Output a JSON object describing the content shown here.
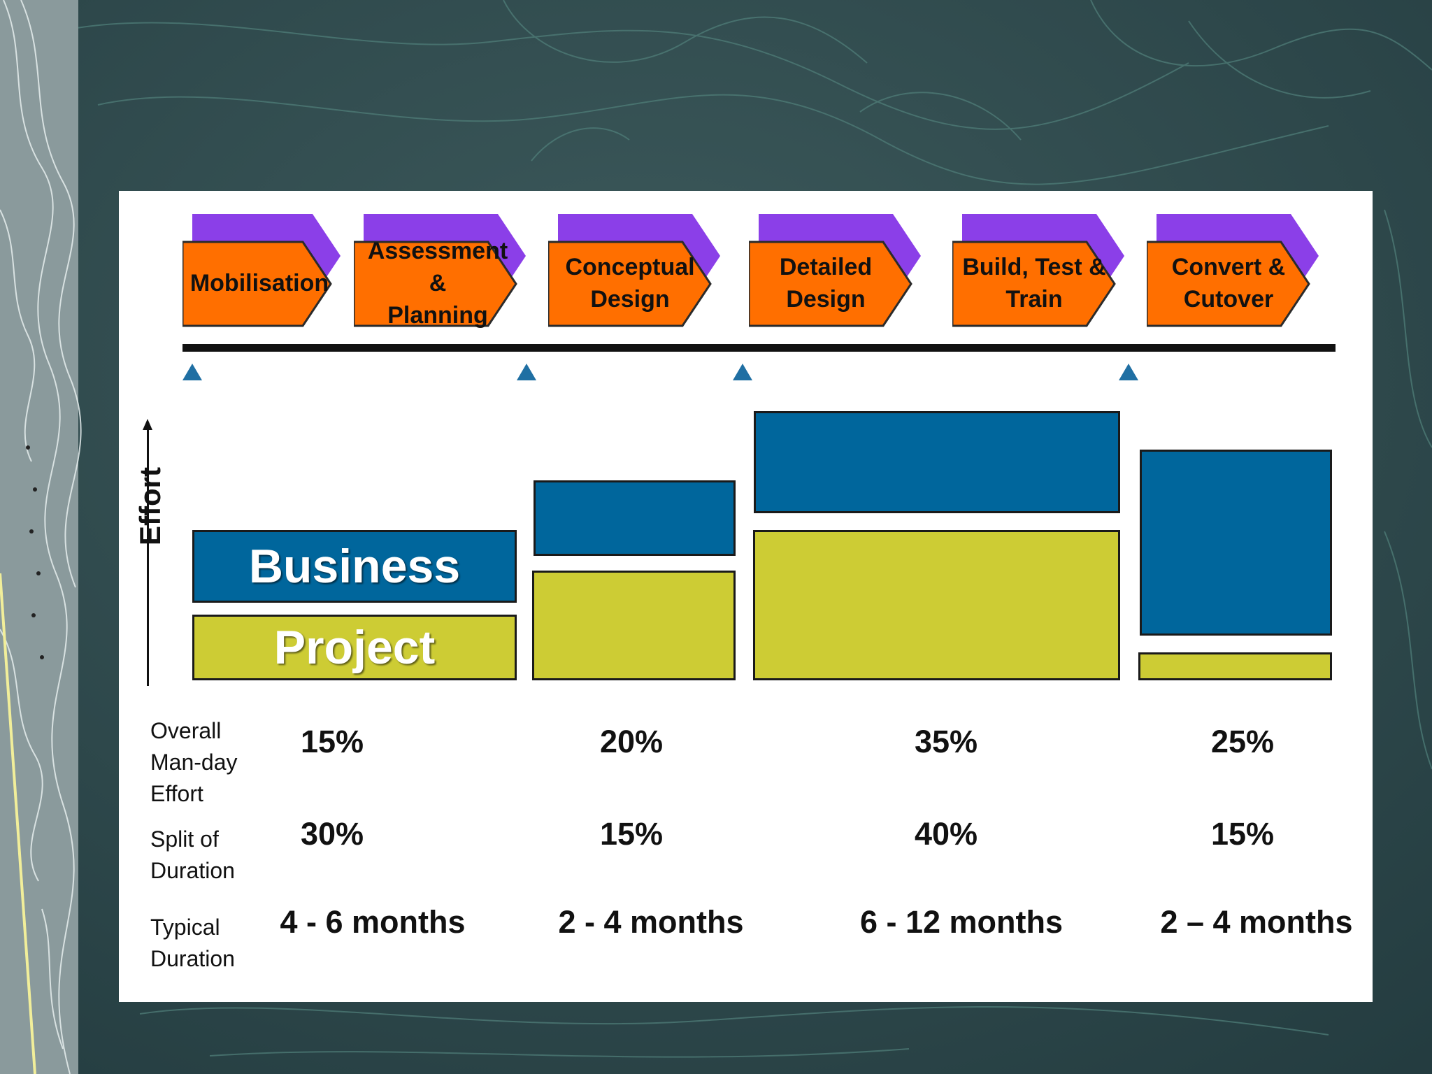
{
  "phases": [
    {
      "label": "Mobilisation"
    },
    {
      "label": "Assessment &\nPlanning"
    },
    {
      "label": "Conceptual\nDesign"
    },
    {
      "label": "Detailed\nDesign"
    },
    {
      "label": "Build, Test &\nTrain"
    },
    {
      "label": "Convert &\nCutover"
    }
  ],
  "colors": {
    "phase_fill": "#ff6f00",
    "phase_shadow": "#8b3fe8",
    "business": "#00669c",
    "project": "#cdcc34",
    "milestone": "#1f6fa3"
  },
  "effort_axis_label": "Effort",
  "legend": {
    "business": "Business",
    "project": "Project"
  },
  "rows": {
    "manday": {
      "label": "Overall\nMan-day\nEffort",
      "values": [
        "15%",
        "20%",
        "35%",
        "25%"
      ]
    },
    "split": {
      "label": "Split of\nDuration",
      "values": [
        "30%",
        "15%",
        "40%",
        "15%"
      ]
    },
    "typical": {
      "label": "Typical\nDuration",
      "values": [
        "4 - 6 months",
        "2 - 4 months",
        "6 - 12 months",
        "2 – 4 months"
      ]
    }
  }
}
